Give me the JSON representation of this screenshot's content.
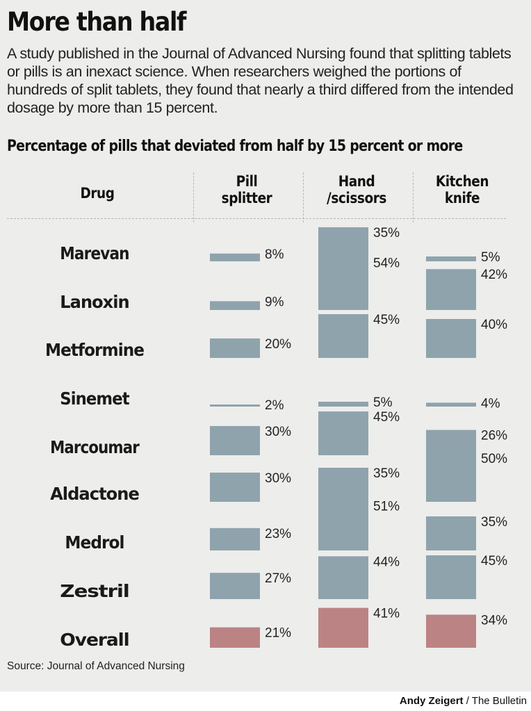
{
  "title": "More than half",
  "intro": "A study published in the Journal of Advanced Nursing found that splitting tablets or pills is an inexact science. When researchers weighed the portions of hundreds of split tablets, they found that nearly a third differed from the intended dosage by more than 15 percent.",
  "source": "Source: Journal of Advanced Nursing",
  "credit": {
    "author": "Andy Zeigert",
    "outlet": " / The Bulletin"
  },
  "colors": {
    "bar": "#8fa3ad",
    "overall": "#bb8384"
  },
  "chart_data": {
    "type": "bar",
    "title": "Percentage of pills that deviated from half by 15 percent or more",
    "category_header": "Drug",
    "categories": [
      "Marevan",
      "Lanoxin",
      "Metformine",
      "Sinemet",
      "Marcoumar",
      "Aldactone",
      "Medrol",
      "Zestril",
      "Overall"
    ],
    "series": [
      {
        "name": "Pill splitter",
        "name_lines": [
          "Pill",
          "splitter"
        ],
        "values": [
          8,
          9,
          20,
          2,
          30,
          30,
          23,
          27,
          21
        ]
      },
      {
        "name": "Hand /scissors",
        "name_lines": [
          "Hand",
          "/scissors"
        ],
        "values": [
          35,
          54,
          45,
          5,
          45,
          35,
          51,
          44,
          41
        ]
      },
      {
        "name": "Kitchen knife",
        "name_lines": [
          "Kitchen",
          "knife"
        ],
        "values": [
          5,
          42,
          40,
          4,
          26,
          50,
          35,
          45,
          34
        ]
      }
    ],
    "value_suffix": "%",
    "highlight_category": "Overall"
  }
}
